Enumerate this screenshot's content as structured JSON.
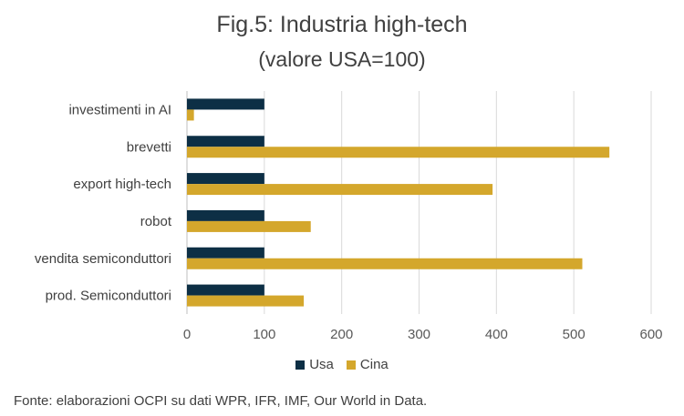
{
  "chart_data": {
    "type": "bar",
    "orientation": "horizontal",
    "title": "Fig.5: Industria high-tech",
    "subtitle": "(valore USA=100)",
    "categories": [
      "investimenti in AI",
      "brevetti",
      "export high-tech",
      "robot",
      "vendita semiconduttori",
      "prod. Semiconduttori"
    ],
    "series": [
      {
        "name": "Usa",
        "color": "#0d2f45",
        "values": [
          100,
          100,
          100,
          100,
          100,
          100
        ]
      },
      {
        "name": "Cina",
        "color": "#d4a72c",
        "values": [
          9,
          546,
          395,
          160,
          511,
          151
        ]
      }
    ],
    "xlim": [
      0,
      600
    ],
    "xticks": [
      "0",
      "100",
      "200",
      "300",
      "400",
      "500",
      "600"
    ],
    "grid": true,
    "legend_position": "bottom"
  },
  "source": "Fonte: elaborazioni OCPI su dati WPR, IFR, IMF, Our World in Data."
}
